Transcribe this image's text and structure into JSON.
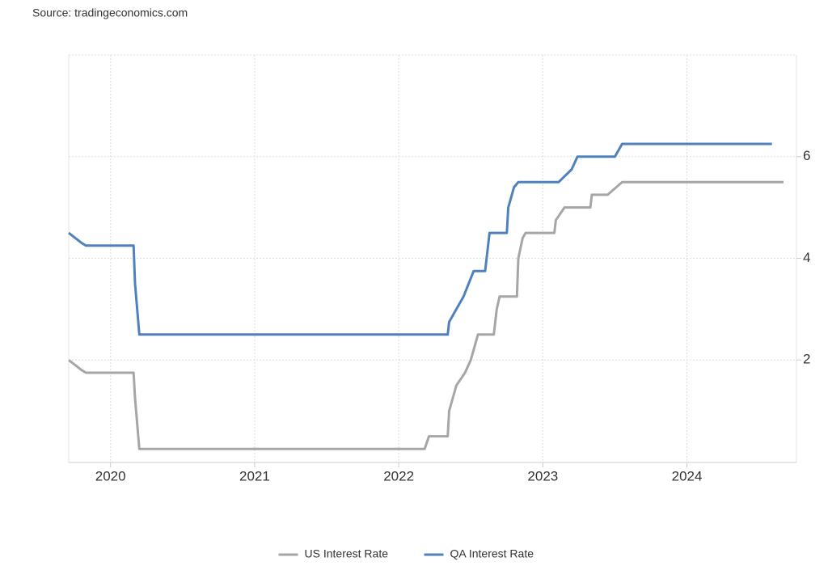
{
  "chart_data": {
    "type": "line",
    "source": "Source: tradingeconomics.com",
    "xlim": [
      2019.71,
      2024.76
    ],
    "xticks": [
      2020,
      2021,
      2022,
      2023,
      2024
    ],
    "ylim": [
      0,
      8
    ],
    "yticks": [
      2,
      4,
      6
    ],
    "grid": true,
    "legend": "bottom",
    "series": [
      {
        "name": "US Interest Rate",
        "color": "#a6a6a6",
        "x": [
          2019.71,
          2019.8,
          2019.83,
          2020.16,
          2020.17,
          2020.2,
          2022.18,
          2022.21,
          2022.34,
          2022.35,
          2022.4,
          2022.46,
          2022.5,
          2022.55,
          2022.66,
          2022.68,
          2022.7,
          2022.82,
          2022.83,
          2022.86,
          2022.88,
          2023.08,
          2023.09,
          2023.15,
          2023.33,
          2023.34,
          2023.45,
          2023.55,
          2024.67
        ],
        "values": [
          2.0,
          1.8,
          1.75,
          1.75,
          1.25,
          0.25,
          0.25,
          0.5,
          0.5,
          1.0,
          1.5,
          1.75,
          2.0,
          2.5,
          2.5,
          3.0,
          3.25,
          3.25,
          4.0,
          4.4,
          4.5,
          4.5,
          4.75,
          5.0,
          5.0,
          5.25,
          5.25,
          5.5,
          5.5
        ]
      },
      {
        "name": "QA Interest Rate",
        "color": "#4f81bd",
        "x": [
          2019.71,
          2019.8,
          2019.83,
          2020.16,
          2020.17,
          2020.2,
          2022.34,
          2022.35,
          2022.45,
          2022.52,
          2022.6,
          2022.63,
          2022.75,
          2022.76,
          2022.8,
          2022.83,
          2023.11,
          2023.2,
          2023.24,
          2023.5,
          2023.55,
          2024.59
        ],
        "values": [
          4.5,
          4.3,
          4.25,
          4.25,
          3.5,
          2.5,
          2.5,
          2.75,
          3.25,
          3.75,
          3.75,
          4.5,
          4.5,
          5.0,
          5.4,
          5.5,
          5.5,
          5.75,
          6.0,
          6.0,
          6.25,
          6.25
        ]
      }
    ]
  }
}
